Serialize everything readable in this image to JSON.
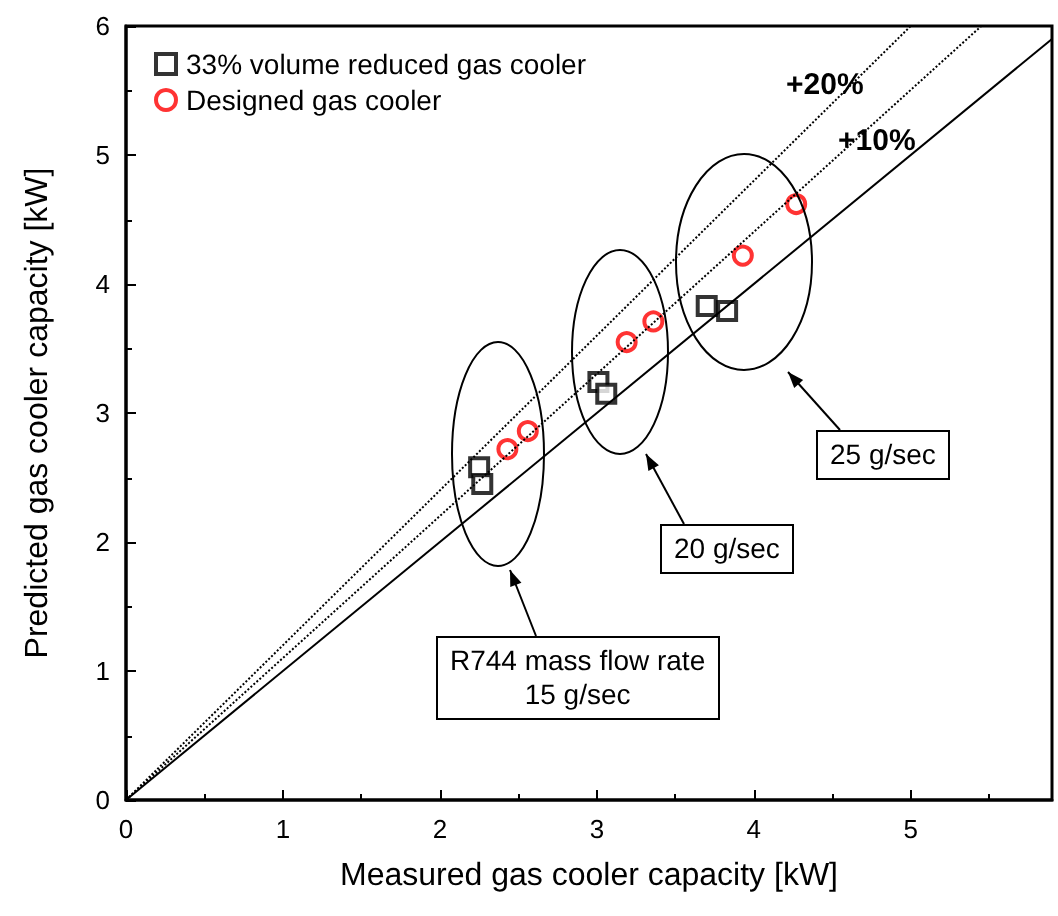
{
  "chart_data": {
    "type": "scatter",
    "xlabel": "Measured gas cooler capacity [kW]",
    "ylabel": "Predicted gas cooler capacity [kW]",
    "xlim": [
      0,
      5.9
    ],
    "xticks": [
      0,
      1,
      2,
      3,
      4,
      5
    ],
    "ylim": [
      0,
      6
    ],
    "yticks": [
      0,
      1,
      2,
      3,
      4,
      5,
      6
    ],
    "grid": false,
    "legend": "top left",
    "series": [
      {
        "name": "33% volume reduced gas cooler",
        "color": "#000000",
        "marker": "square",
        "x": [
          2.25,
          2.27,
          3.01,
          3.06,
          3.7,
          3.83
        ],
        "values": [
          2.58,
          2.45,
          3.24,
          3.15,
          3.83,
          3.79
        ]
      },
      {
        "name": "Designed gas cooler",
        "color": "#ff0000",
        "marker": "circle",
        "x": [
          2.43,
          2.56,
          3.19,
          3.36,
          3.93,
          4.27
        ],
        "values": [
          2.72,
          2.86,
          3.55,
          3.71,
          4.22,
          4.62
        ]
      },
      {
        "type": "line",
        "color": "#000000",
        "marker": "none",
        "line_style": "solid",
        "x": [
          0,
          5.9
        ],
        "values": [
          0,
          5.9
        ]
      },
      {
        "type": "line",
        "color": "#000000",
        "marker": "none",
        "line_style": "dotted",
        "x": [
          0,
          5.45
        ],
        "values": [
          0,
          6.0
        ]
      },
      {
        "type": "line",
        "color": "#000000",
        "marker": "none",
        "line_style": "dotted",
        "x": [
          0,
          5
        ],
        "values": [
          0,
          6
        ]
      }
    ],
    "annotations": [
      "+20%",
      "+10%",
      "R744 mass flow rate\n15 g/sec",
      "20 g/sec",
      "25 g/sec"
    ]
  }
}
